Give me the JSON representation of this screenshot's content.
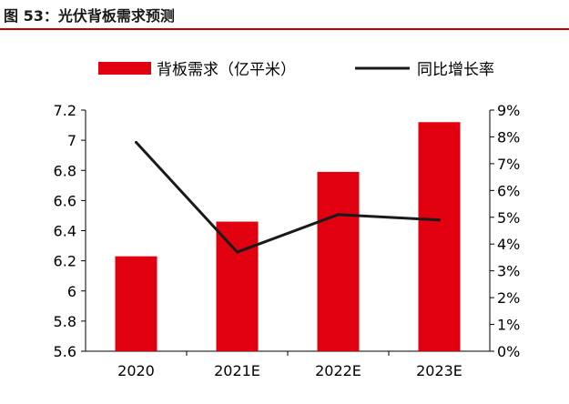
{
  "figure": {
    "title": "图 53：光伏背板需求预测"
  },
  "colors": {
    "bar": "#e0000f",
    "line": "#1a1a1a",
    "axis": "#000000",
    "title_rule": "#c00000"
  },
  "chart_data": {
    "type": "bar",
    "categories": [
      "2020",
      "2021E",
      "2022E",
      "2023E"
    ],
    "series": [
      {
        "name": "背板需求（亿平米）",
        "type": "bar",
        "axis": "left",
        "values": [
          6.23,
          6.46,
          6.79,
          7.12
        ]
      },
      {
        "name": "同比增长率",
        "type": "line",
        "axis": "right",
        "values": [
          7.8,
          3.7,
          5.1,
          4.9
        ]
      }
    ],
    "y_left": {
      "ylim": [
        5.6,
        7.2
      ],
      "ticks": [
        "7.2",
        "7",
        "6.8",
        "6.6",
        "6.4",
        "6.2",
        "6",
        "5.8",
        "5.6"
      ]
    },
    "y_right": {
      "ylim": [
        0,
        9
      ],
      "ticks": [
        "9%",
        "8%",
        "7%",
        "6%",
        "5%",
        "4%",
        "3%",
        "2%",
        "1%",
        "0%"
      ]
    },
    "legend": "top",
    "grid": false
  }
}
